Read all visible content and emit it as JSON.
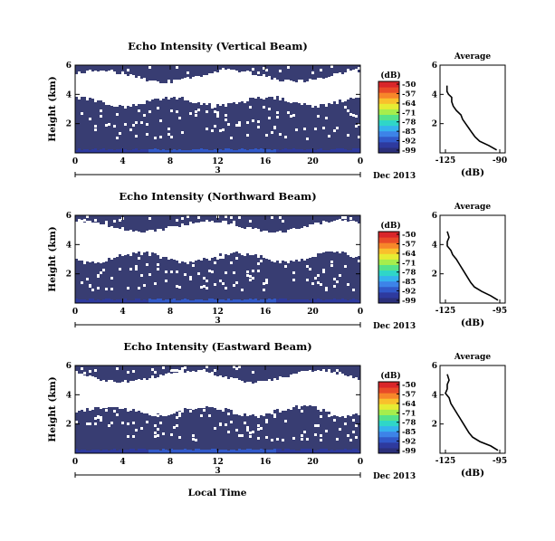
{
  "colormap": [
    "#2b2f7a",
    "#2e3a9e",
    "#3159c9",
    "#3d83e8",
    "#35b2ee",
    "#2fd6c8",
    "#55e38a",
    "#a6ee4c",
    "#e6ec33",
    "#f9c02c",
    "#f7862a",
    "#e94b28",
    "#d9262a"
  ],
  "chart_data": [
    {
      "type": "heatmap",
      "panel": "vertical",
      "title": "Echo Intensity (Vertical Beam)",
      "ylabel": "Height (km)",
      "yticks": [
        "6",
        "4",
        "2"
      ],
      "ylim": [
        0,
        6
      ],
      "xticks": [
        "0",
        "4",
        "8",
        "12",
        "16",
        "20",
        "0"
      ],
      "xlim": [
        0,
        24
      ],
      "date_mid": "3",
      "date_label": "Dec 2013",
      "colorbar_title": "(dB)",
      "colorbar_ticks": [
        "-50",
        "-57",
        "-64",
        "-71",
        "-78",
        "-85",
        "-92",
        "-99"
      ],
      "avg_title": "Average",
      "avg_xlabel": "(dB)",
      "avg_xticks": [
        "-125",
        "-90"
      ],
      "avg_yticks": [
        "6",
        "4",
        "2"
      ],
      "avg_xlim": [
        -125,
        -90
      ],
      "avg_profile": {
        "height": [
          0.2,
          0.5,
          0.8,
          1.1,
          1.4,
          1.7,
          2.0,
          2.3,
          2.6,
          2.9,
          3.2,
          3.5,
          3.8,
          4.0,
          4.2,
          4.6
        ],
        "db": [
          -92,
          -97,
          -103,
          -106,
          -108,
          -110,
          -112,
          -114,
          -115,
          -118,
          -120,
          -121,
          -121,
          -123,
          -124,
          -124
        ]
      }
    },
    {
      "type": "heatmap",
      "panel": "northward",
      "title": "Echo Intensity (Northward Beam)",
      "ylabel": "Height (km)",
      "yticks": [
        "6",
        "4",
        "2"
      ],
      "ylim": [
        0,
        6
      ],
      "xticks": [
        "0",
        "4",
        "8",
        "12",
        "16",
        "20",
        "0"
      ],
      "xlim": [
        0,
        24
      ],
      "date_mid": "3",
      "date_label": "Dec 2013",
      "colorbar_title": "(dB)",
      "colorbar_ticks": [
        "-50",
        "-57",
        "-64",
        "-71",
        "-78",
        "-85",
        "-92",
        "-99"
      ],
      "avg_title": "Average",
      "avg_xlabel": "(dB)",
      "avg_xticks": [
        "-125",
        "-95"
      ],
      "avg_yticks": [
        "6",
        "4",
        "2"
      ],
      "avg_xlim": [
        -125,
        -95
      ],
      "avg_profile": {
        "height": [
          0.2,
          0.5,
          0.8,
          1.1,
          1.4,
          1.8,
          2.2,
          2.6,
          3.0,
          3.3,
          3.6,
          3.9,
          4.2,
          4.5,
          4.9
        ],
        "db": [
          -96,
          -100,
          -105,
          -109,
          -111,
          -113,
          -115,
          -117,
          -119,
          -121,
          -122,
          -124,
          -124,
          -123,
          -124
        ]
      }
    },
    {
      "type": "heatmap",
      "panel": "eastward",
      "title": "Echo Intensity (Eastward Beam)",
      "ylabel": "Height (km)",
      "yticks": [
        "6",
        "4",
        "2"
      ],
      "ylim": [
        0,
        6
      ],
      "xticks": [
        "0",
        "4",
        "8",
        "12",
        "16",
        "20",
        "0"
      ],
      "xlim": [
        0,
        24
      ],
      "date_mid": "3",
      "date_label": "Dec 2013",
      "colorbar_title": "(dB)",
      "colorbar_ticks": [
        "-50",
        "-57",
        "-64",
        "-71",
        "-78",
        "-85",
        "-92",
        "-99"
      ],
      "avg_title": "Average",
      "avg_xlabel": "(dB)",
      "avg_xticks": [
        "-125",
        "-95"
      ],
      "avg_yticks": [
        "6",
        "4",
        "2"
      ],
      "avg_xlim": [
        -125,
        -95
      ],
      "avg_profile": {
        "height": [
          0.2,
          0.5,
          0.8,
          1.1,
          1.4,
          1.8,
          2.2,
          2.6,
          3.0,
          3.4,
          3.8,
          4.1,
          4.4,
          4.7,
          5.0,
          5.4
        ],
        "db": [
          -96,
          -100,
          -106,
          -110,
          -112,
          -114,
          -116,
          -118,
          -120,
          -122,
          -123,
          -125,
          -124,
          -124,
          -123,
          -124
        ]
      }
    }
  ],
  "bottom_xlabel": "Local Time"
}
